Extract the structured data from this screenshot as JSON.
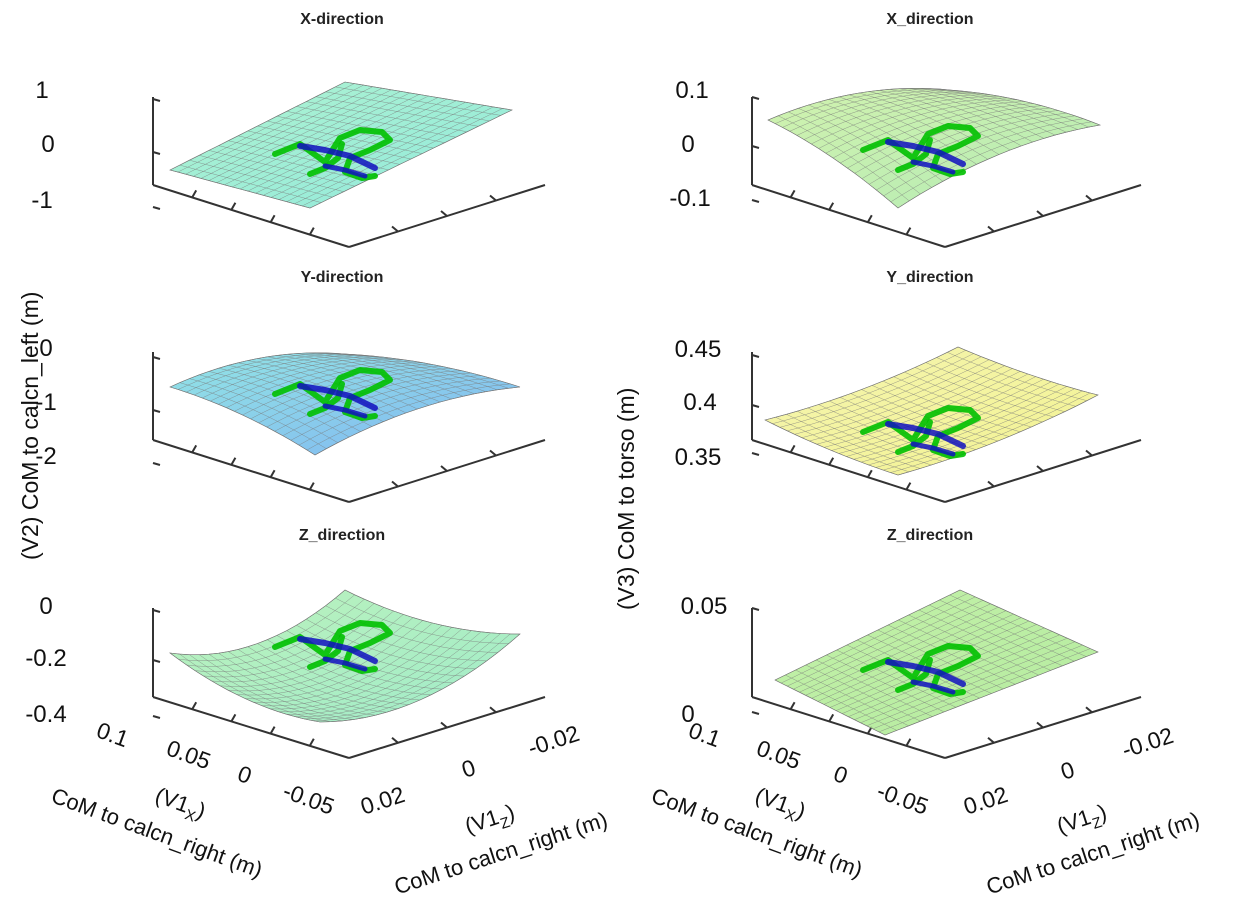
{
  "chart_data": [
    {
      "type": "surface",
      "title": "X-direction",
      "zticks": [
        "1",
        "0",
        "-1"
      ],
      "zlim": [
        -1,
        1
      ],
      "surface_color": "#9ff0c8",
      "surface_color_low": "#7fe6d6",
      "trajectory_colors": [
        "#00c000",
        "#1010c0"
      ]
    },
    {
      "type": "surface",
      "title": "X_direction",
      "zticks": [
        "0.1",
        "0",
        "-0.1"
      ],
      "zlim": [
        -0.1,
        0.1
      ],
      "surface_color": "#c8f0a0",
      "surface_color_low": "#a8e8a8",
      "trajectory_colors": [
        "#00c000",
        "#1010c0"
      ]
    },
    {
      "type": "surface",
      "title": "Y-direction",
      "zticks": [
        "0",
        "-1",
        "-2"
      ],
      "zlim": [
        -2,
        0
      ],
      "surface_color": "#7fe0e0",
      "surface_color_low": "#6aa8f0",
      "trajectory_colors": [
        "#00c000",
        "#1010c0"
      ]
    },
    {
      "type": "surface",
      "title": "Y_direction",
      "zticks": [
        "0.45",
        "0.4",
        "0.35"
      ],
      "zlim": [
        0.35,
        0.45
      ],
      "surface_color": "#f4f4a0",
      "surface_color_low": "#f0f080",
      "trajectory_colors": [
        "#00c000",
        "#1010c0"
      ]
    },
    {
      "type": "surface",
      "title": "Z_direction",
      "zticks": [
        "0",
        "-0.2",
        "-0.4"
      ],
      "zlim": [
        -0.4,
        0
      ],
      "surface_color": "#b0f0b0",
      "surface_color_low": "#90e8c0",
      "trajectory_colors": [
        "#00c000",
        "#1010c0"
      ],
      "xticks": [
        "0.1",
        "0.05",
        "0",
        "-0.05"
      ],
      "yticks": [
        "0.02",
        "0",
        "-0.02"
      ],
      "xlabel": "(V1X)",
      "xlabel_sub": "CoM to calcn_right (m)",
      "ylabel": "(V1Z)",
      "ylabel_sub": "CoM to calcn_right (m)"
    },
    {
      "type": "surface",
      "title": "Z_direction",
      "zticks": [
        "0.05",
        "0"
      ],
      "zlim": [
        0,
        0.05
      ],
      "surface_color": "#b8ee98",
      "surface_color_low": "#a8e890",
      "trajectory_colors": [
        "#00c000",
        "#1010c0"
      ],
      "xticks": [
        "0.1",
        "0.05",
        "0",
        "-0.05"
      ],
      "yticks": [
        "0.02",
        "0",
        "-0.02"
      ],
      "xlabel": "(V1X)",
      "xlabel_sub": "CoM to calcn_right (m)",
      "ylabel": "(V1Z)",
      "ylabel_sub": "CoM to calcn_right (m)"
    }
  ],
  "labels": {
    "left_column_zlabel": "(V2) CoM to calcn_left (m)",
    "right_column_zlabel": "(V3) CoM to torso (m)",
    "x_axis_prefix": "(V1",
    "x_axis_sub": "X",
    "x_axis_suffix": ")",
    "z_axis_prefix": "(V1",
    "z_axis_sub": "Z",
    "z_axis_suffix": ")",
    "axis_desc": "CoM to calcn_right (m)"
  }
}
